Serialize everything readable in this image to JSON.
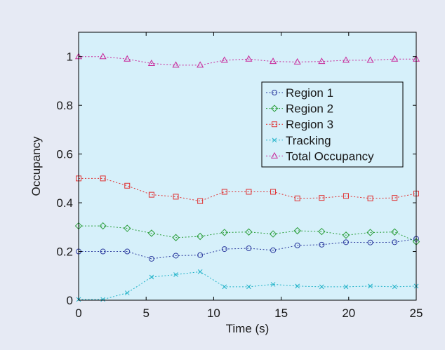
{
  "chart_data": {
    "type": "line",
    "xlabel": "Time (s)",
    "ylabel": "Occupancy",
    "xlim": [
      0,
      25
    ],
    "ylim": [
      0,
      1.1
    ],
    "x_ticks": [
      0,
      5,
      10,
      15,
      20,
      25
    ],
    "y_ticks": [
      0,
      0.2,
      0.4,
      0.6,
      0.8,
      1
    ],
    "x_tick_labels": [
      "0",
      "5",
      "10",
      "15",
      "20",
      "25"
    ],
    "y_tick_labels": [
      "0",
      "0.2",
      "0.4",
      "0.6",
      "0.8",
      "1"
    ],
    "grid": false,
    "legend_position": "top-right",
    "background_color": "#e6eaf4",
    "plot_background": "#d6f0fa",
    "x": [
      0,
      1.8,
      3.6,
      5.4,
      7.2,
      9.0,
      10.8,
      12.6,
      14.4,
      16.2,
      18.0,
      19.8,
      21.6,
      23.4,
      25
    ],
    "series": [
      {
        "name": "Region 1",
        "color": "#2b3a9e",
        "marker": "circle",
        "values": [
          0.2,
          0.2,
          0.2,
          0.17,
          0.183,
          0.185,
          0.21,
          0.213,
          0.205,
          0.225,
          0.228,
          0.238,
          0.237,
          0.238,
          0.252
        ]
      },
      {
        "name": "Region 2",
        "color": "#2a9e3a",
        "marker": "diamond",
        "values": [
          0.305,
          0.305,
          0.295,
          0.275,
          0.257,
          0.262,
          0.278,
          0.28,
          0.272,
          0.285,
          0.282,
          0.267,
          0.278,
          0.28,
          0.24
        ]
      },
      {
        "name": "Region 3",
        "color": "#e03030",
        "marker": "square",
        "values": [
          0.5,
          0.5,
          0.47,
          0.433,
          0.425,
          0.407,
          0.445,
          0.445,
          0.445,
          0.418,
          0.42,
          0.428,
          0.418,
          0.42,
          0.438
        ]
      },
      {
        "name": "Tracking",
        "color": "#20b2c8",
        "marker": "x",
        "values": [
          0.003,
          0.003,
          0.03,
          0.095,
          0.105,
          0.117,
          0.055,
          0.055,
          0.065,
          0.058,
          0.055,
          0.055,
          0.058,
          0.055,
          0.058
        ]
      },
      {
        "name": "Total Occupancy",
        "color": "#c8289a",
        "marker": "triangle",
        "values": [
          1.0,
          1.0,
          0.99,
          0.972,
          0.965,
          0.965,
          0.985,
          0.99,
          0.98,
          0.978,
          0.98,
          0.985,
          0.985,
          0.99,
          0.99
        ]
      }
    ]
  }
}
